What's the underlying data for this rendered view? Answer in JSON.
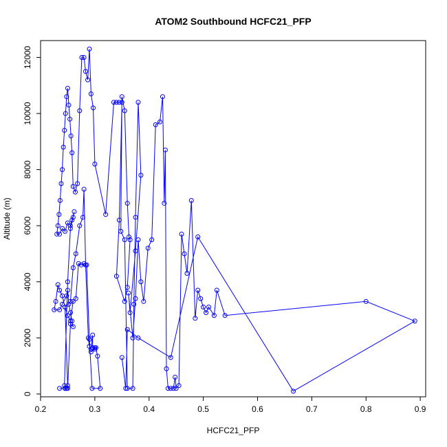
{
  "chart_data": {
    "type": "line",
    "title": "ATOM2 Southbound HCFC21_PFP",
    "xlabel": "HCFC21_PFP",
    "ylabel": "Altitude (m)",
    "xlim": [
      0.2,
      0.91
    ],
    "ylim": [
      -100,
      12600
    ],
    "xticks": [
      0.2,
      0.3,
      0.4,
      0.5,
      0.6,
      0.7,
      0.8,
      0.9
    ],
    "xtick_labels": [
      "0.2",
      "0.3",
      "0.4",
      "0.5",
      "0.6",
      "0.7",
      "0.8",
      "0.9"
    ],
    "yticks": [
      0,
      2000,
      4000,
      6000,
      8000,
      10000,
      12000
    ],
    "ytick_labels": [
      "0",
      "2000",
      "4000",
      "6000",
      "8000",
      "10000",
      "12000"
    ],
    "grid": false,
    "series": [
      {
        "color": "#0000ff",
        "x": [
          0.235,
          0.245,
          0.248,
          0.25,
          0.245,
          0.255,
          0.26,
          0.265,
          0.272,
          0.278,
          0.28,
          0.283,
          0.288,
          0.29,
          0.293,
          0.296,
          0.296,
          0.3,
          0.293,
          0.3,
          0.302,
          0.305,
          0.31,
          0.295,
          0.29,
          0.285,
          0.28,
          0.275,
          0.27,
          0.265,
          0.26,
          0.255,
          0.25,
          0.245,
          0.24,
          0.235,
          0.232,
          0.228,
          0.225,
          0.235,
          0.24,
          0.248,
          0.25,
          0.252,
          0.255,
          0.258,
          0.26,
          0.255,
          0.25,
          0.248,
          0.245,
          0.244,
          0.25,
          0.255,
          0.26,
          0.262,
          0.258,
          0.255,
          0.25,
          0.245,
          0.24,
          0.235,
          0.23,
          0.232,
          0.234,
          0.236,
          0.238,
          0.24,
          0.242,
          0.244,
          0.246,
          0.248,
          0.25,
          0.252,
          0.254,
          0.256,
          0.258,
          0.26,
          0.264,
          0.268,
          0.272,
          0.276,
          0.28,
          0.283,
          0.287,
          0.29,
          0.293,
          0.297,
          0.3,
          0.32,
          0.335,
          0.34,
          0.345,
          0.35,
          0.345,
          0.34,
          0.355,
          0.36,
          0.365,
          0.363,
          0.36,
          0.355,
          0.35,
          0.348,
          0.355,
          0.36,
          0.37,
          0.372,
          0.375,
          0.38,
          0.385,
          0.375,
          0.365,
          0.362,
          0.37,
          0.375,
          0.38,
          0.385,
          0.39,
          0.398,
          0.405,
          0.412,
          0.42,
          0.425,
          0.428,
          0.43,
          0.432,
          0.435,
          0.44,
          0.445,
          0.448,
          0.45,
          0.455,
          0.46,
          0.465,
          0.47,
          0.478,
          0.485,
          0.49,
          0.495,
          0.5,
          0.505,
          0.51,
          0.52,
          0.525,
          0.54,
          0.8,
          0.89,
          0.666,
          0.49,
          0.44,
          0.38,
          0.36,
          0.357,
          0.35
        ],
        "y": [
          200,
          200,
          200,
          300,
          3100,
          3300,
          4500,
          5000,
          6000,
          6300,
          7300,
          4600,
          2000,
          1700,
          1600,
          2100,
          1650,
          1650,
          1500,
          1600,
          1650,
          1350,
          200,
          200,
          1950,
          4600,
          4650,
          4600,
          4650,
          3400,
          3300,
          2600,
          2800,
          3100,
          3500,
          3700,
          3900,
          3300,
          3000,
          3000,
          3200,
          3500,
          3700,
          3200,
          2900,
          2600,
          2400,
          2500,
          200,
          200,
          200,
          300,
          4000,
          5900,
          6300,
          6500,
          6200,
          6000,
          6100,
          5800,
          5900,
          5700,
          5700,
          6000,
          6400,
          6900,
          7500,
          8000,
          8800,
          9400,
          10000,
          10600,
          10900,
          10300,
          9800,
          9200,
          8600,
          7400,
          7200,
          7500,
          10100,
          12000,
          12000,
          11500,
          11200,
          12300,
          10700,
          10200,
          8200,
          6400,
          10400,
          10400,
          10400,
          10400,
          6200,
          4200,
          3300,
          3800,
          5500,
          5600,
          6800,
          10100,
          10600,
          5800,
          5500,
          200,
          200,
          3200,
          6300,
          10400,
          7800,
          5100,
          2900,
          3600,
          2000,
          3400,
          5500,
          4000,
          3300,
          5200,
          5500,
          9600,
          9700,
          10600,
          6800,
          8700,
          900,
          200,
          200,
          200,
          600,
          200,
          300,
          5700,
          5000,
          4300,
          6900,
          2700,
          3700,
          3400,
          3100,
          2900,
          3100,
          2800,
          3700,
          2800,
          3300,
          2600,
          100,
          5600,
          1300,
          2000,
          2300,
          200,
          1300
        ]
      }
    ]
  }
}
